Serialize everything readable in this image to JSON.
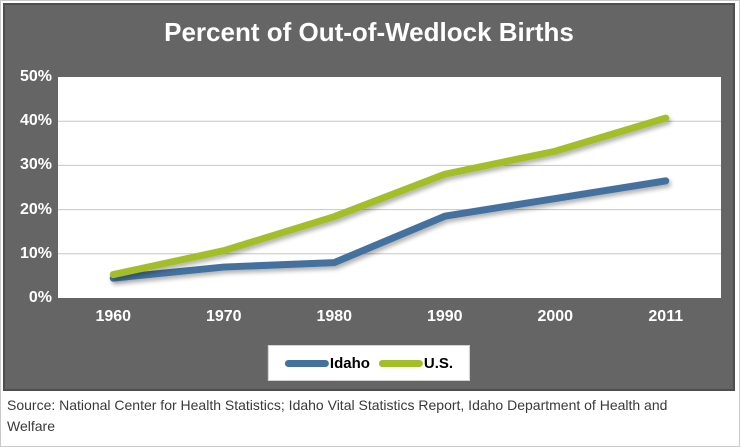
{
  "chart_data": {
    "type": "line",
    "title": "Percent of Out-of-Wedlock Births",
    "categories": [
      "1960",
      "1970",
      "1980",
      "1990",
      "2000",
      "2011"
    ],
    "series": [
      {
        "name": "Idaho",
        "color": "#44719E",
        "values": [
          4.5,
          7.0,
          8.0,
          18.5,
          22.5,
          26.5
        ]
      },
      {
        "name": "U.S.",
        "color": "#A4BE2A",
        "values": [
          5.3,
          10.7,
          18.4,
          28.0,
          33.2,
          40.7
        ]
      }
    ],
    "xlabel": "",
    "ylabel": "",
    "ylim": [
      0,
      50
    ],
    "ytick_labels": [
      "50%",
      "40%",
      "30%",
      "20%",
      "10%",
      "0%"
    ],
    "gridlines": [
      40,
      30,
      20,
      10
    ],
    "grid": true,
    "legend_position": "bottom"
  },
  "source_text": "Source: National Center for Health Statistics; Idaho Vital Statistics Report, Idaho Department of Health and Welfare",
  "colors": {
    "chart_background": "#656565",
    "chart_border": "#4E4E4E",
    "plot_background": "#FFFFFF",
    "gridline": "#C6C6C6",
    "axis_text": "#FFFFFF",
    "legend_text": "#000000",
    "idaho_line": "#44719E",
    "us_line": "#A4BE2A"
  }
}
